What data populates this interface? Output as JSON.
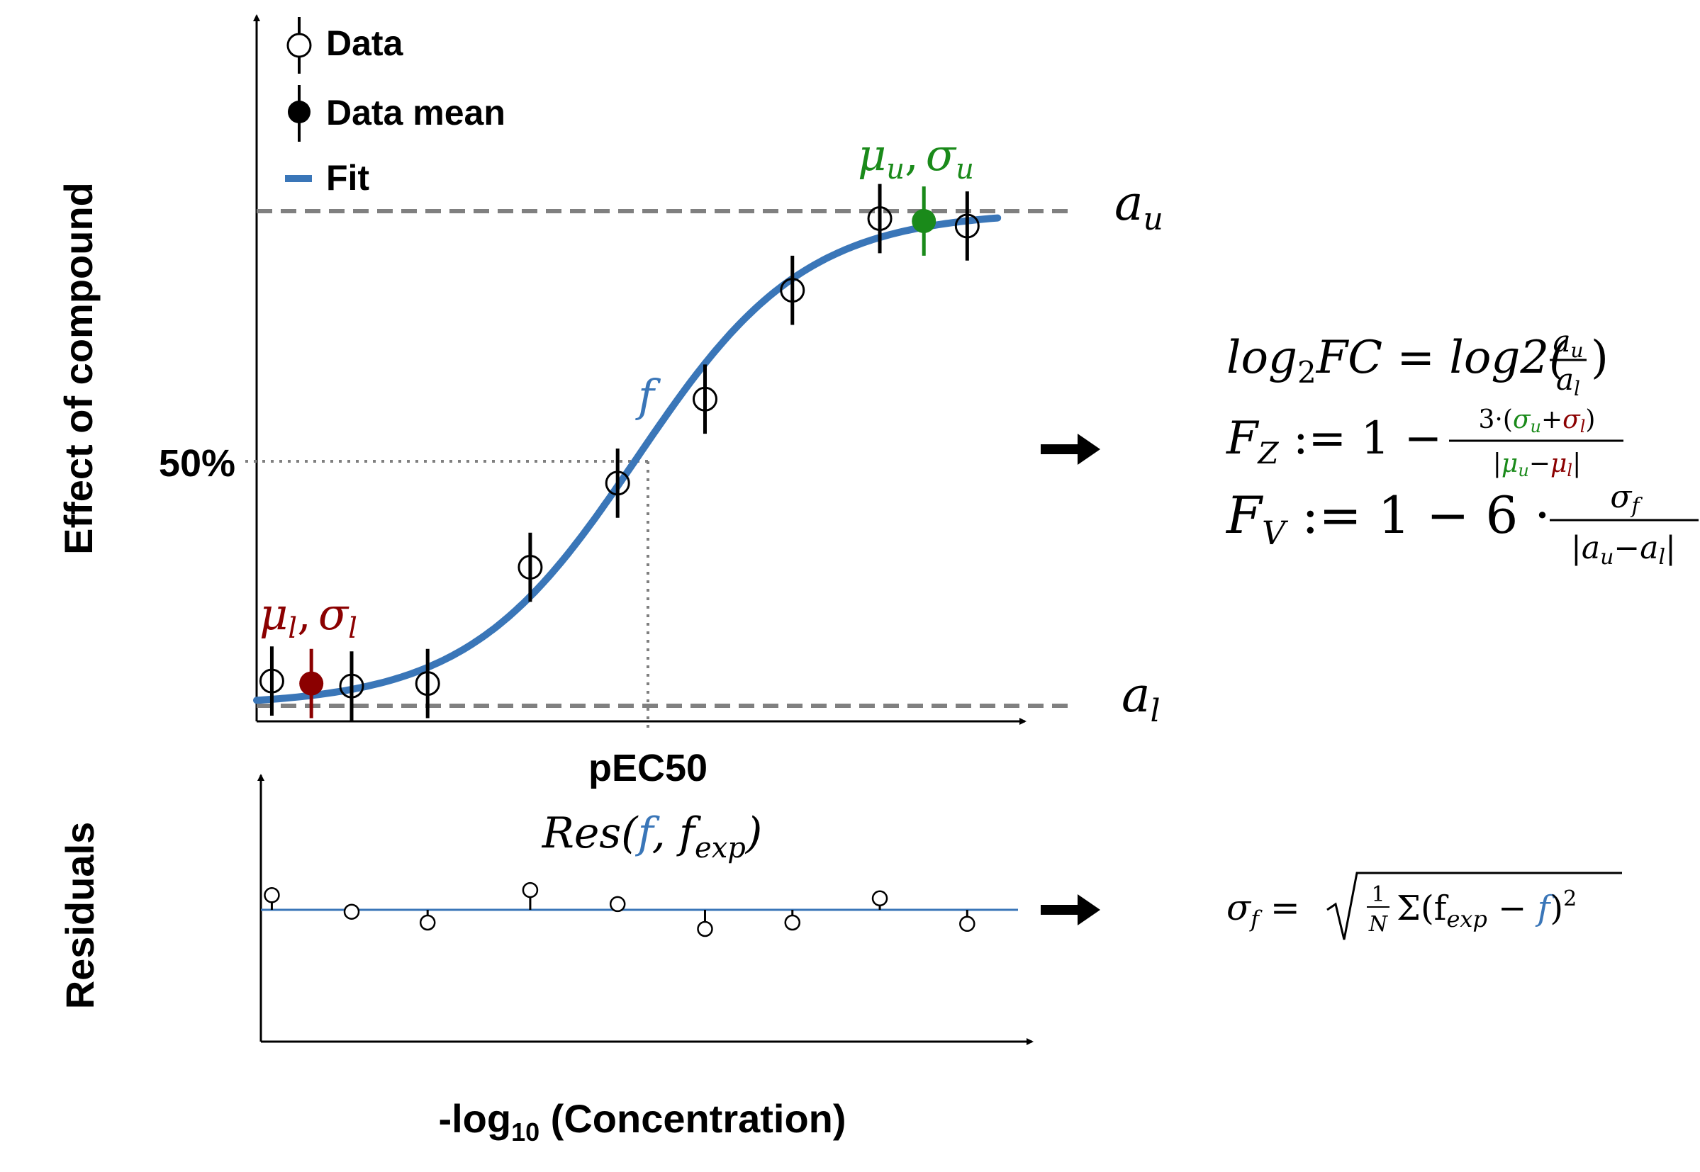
{
  "colors": {
    "fit": "#3a76b8",
    "upper": "#1a8a1a",
    "lower": "#8b0000",
    "guide": "#808080",
    "ink": "#000000"
  },
  "legend": {
    "data_label": "Data",
    "mean_label": "Data mean",
    "fit_label": "Fit"
  },
  "axes": {
    "top_ylabel": "Effect of compound",
    "bottom_ylabel": "Residuals",
    "xlabel_prefix": "-log",
    "xlabel_sub": "10",
    "xlabel_suffix": " (Concentration)"
  },
  "annotations": {
    "fifty_percent": "50%",
    "pec50": "pEC50",
    "mu_l": "μ",
    "mu_l_sub": "l",
    "sigma_l": "σ",
    "sigma_l_sub": "l",
    "mu_u": "μ",
    "mu_u_sub": "u",
    "sigma_u": "σ",
    "sigma_u_sub": "u",
    "comma": ",",
    "a_u": "a",
    "a_u_sub": "u",
    "a_l": "a",
    "a_l_sub": "l",
    "f": "f",
    "res_prefix": "Res(",
    "res_f": "f",
    "res_mid": ", f",
    "res_sub": "exp",
    "res_suffix": ")"
  },
  "formulas": {
    "log2fc_lhs": "log",
    "log2fc_lhs_sub": "2",
    "log2fc_lhs_rest": "FC = log2(",
    "log2fc_num": "a",
    "log2fc_num_sub": "u",
    "log2fc_den": "a",
    "log2fc_den_sub": "l",
    "log2fc_close": ")",
    "fz_lhs": "F",
    "fz_sub": "Z",
    "fz_eq": " := 1 − ",
    "fz_num_a": "3·(",
    "fz_num_su": "σ",
    "fz_num_su_sub": "u",
    "fz_plus": "+",
    "fz_num_sl": "σ",
    "fz_num_sl_sub": "l",
    "fz_num_close": ")",
    "fz_den_open": "|",
    "fz_den_mu": "μ",
    "fz_den_mu_sub": "u",
    "fz_den_minus": "−",
    "fz_den_ml": "μ",
    "fz_den_ml_sub": "l",
    "fz_den_close": "|",
    "fv_lhs": "F",
    "fv_sub": "V",
    "fv_eq": " := 1 − 6 · ",
    "fv_num": "σ",
    "fv_num_sub": "f",
    "fv_den": "|a",
    "fv_den_sub1": "u",
    "fv_den_mid": "−a",
    "fv_den_sub2": "l",
    "fv_den_close": "|",
    "sigma_lhs": "σ",
    "sigma_lhs_sub": "f",
    "sigma_eq": " = ",
    "sigma_frac_num": "1",
    "sigma_frac_den": "N",
    "sigma_sum": "Σ(f",
    "sigma_sum_sub": "exp",
    "sigma_minus": " − ",
    "sigma_f": "f",
    "sigma_close": ")",
    "sigma_pow": "2"
  },
  "chart_data": {
    "type": "scatter",
    "x_range": [
      0,
      1
    ],
    "y_range": [
      0,
      1
    ],
    "fit": {
      "lower": 0,
      "upper": 1,
      "ec50": 0.5,
      "hill": 9
    },
    "fit_curve": "sigmoid",
    "data_points": [
      {
        "x": 0.02,
        "y": 0.05,
        "err": 0.07
      },
      {
        "x": 0.125,
        "y": 0.04,
        "err": 0.07
      },
      {
        "x": 0.225,
        "y": 0.045,
        "err": 0.07
      },
      {
        "x": 0.36,
        "y": 0.28,
        "err": 0.07
      },
      {
        "x": 0.475,
        "y": 0.45,
        "err": 0.07
      },
      {
        "x": 0.59,
        "y": 0.62,
        "err": 0.07
      },
      {
        "x": 0.705,
        "y": 0.84,
        "err": 0.07
      },
      {
        "x": 0.82,
        "y": 0.985,
        "err": 0.07
      },
      {
        "x": 0.935,
        "y": 0.97,
        "err": 0.07
      }
    ],
    "lower_mean": {
      "x": 0.072,
      "y": 0.045,
      "err": 0.07
    },
    "upper_mean": {
      "x": 0.878,
      "y": 0.98,
      "err": 0.07
    },
    "residuals": [
      {
        "x": 0.02,
        "r": 0.23
      },
      {
        "x": 0.125,
        "r": -0.03
      },
      {
        "x": 0.225,
        "r": -0.2
      },
      {
        "x": 0.36,
        "r": 0.31
      },
      {
        "x": 0.475,
        "r": 0.09
      },
      {
        "x": 0.59,
        "r": -0.3
      },
      {
        "x": 0.705,
        "r": -0.2
      },
      {
        "x": 0.82,
        "r": 0.18
      },
      {
        "x": 0.935,
        "r": -0.22
      }
    ]
  }
}
